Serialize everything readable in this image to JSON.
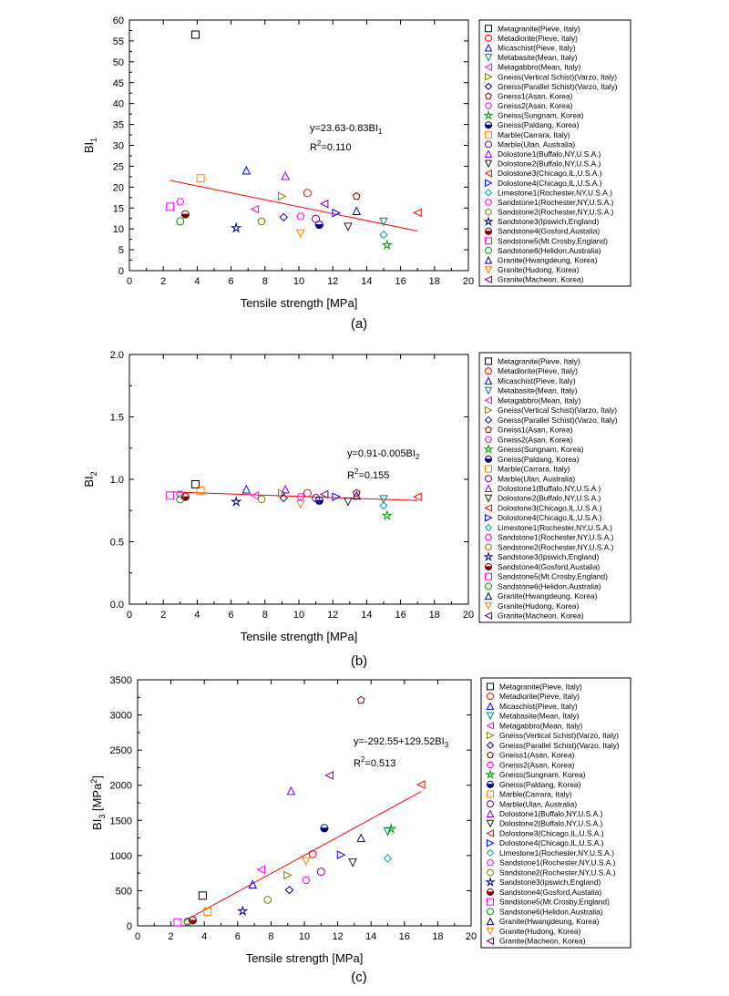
{
  "legend": {
    "entries": [
      {
        "label": "Metagranite(Pieve, Italy)",
        "marker": "square",
        "color": "#000000"
      },
      {
        "label": "Metadiorite(Pieve, Italy)",
        "marker": "circle",
        "color": "#ff0000"
      },
      {
        "label": "Micaschist(Pieve, Italy)",
        "marker": "tri-up",
        "color": "#0000ff"
      },
      {
        "label": "Metabasite(Mean, Italy)",
        "marker": "tri-down",
        "color": "#008080"
      },
      {
        "label": "Metagabbro(Mean, Italy)",
        "marker": "tri-left",
        "color": "#ff00ff"
      },
      {
        "label": "Gneiss(Vertical Schist)(Varzo, Italy)",
        "marker": "tri-right",
        "color": "#808000"
      },
      {
        "label": "Gneiss(Parallel Schist)(Varzo, Italy)",
        "marker": "diamond",
        "color": "#000080"
      },
      {
        "label": "Gneiss1(Asan, Korea)",
        "marker": "pentagon",
        "color": "#800000"
      },
      {
        "label": "Gneiss2(Asan, Korea)",
        "marker": "hexagon",
        "color": "#ff00ff"
      },
      {
        "label": "Gneiss(Sungnam, Korea)",
        "marker": "star",
        "color": "#00a000"
      },
      {
        "label": "Gneiss(Paldang, Korea)",
        "marker": "circle-half",
        "color": "#000080"
      },
      {
        "label": "Marble(Carrara, Italy)",
        "marker": "square",
        "color": "#ff8000"
      },
      {
        "label": " Marble(Ulan, Australia)",
        "marker": "circle",
        "color": "#800080"
      },
      {
        "label": "Dolostone1(Buffalo,NY,U.S.A.)",
        "marker": "tri-up",
        "color": "#8000ff"
      },
      {
        "label": "Dolostone2(Buffalo,NY,U.S.A.)",
        "marker": "tri-down",
        "color": "#202020"
      },
      {
        "label": "Dolostone3(Chicago,IL,U.S.A.)",
        "marker": "tri-left",
        "color": "#ff0000"
      },
      {
        "label": "Dolostone4(Chicago,IL,U.S.A.)",
        "marker": "tri-right",
        "color": "#0000ff"
      },
      {
        "label": "Limestone1(Rochester,NY,U.S.A.)",
        "marker": "diamond",
        "color": "#00a0a0"
      },
      {
        "label": "Sandstone1(Rochester,NY,U.S.A.)",
        "marker": "hexagon",
        "color": "#ff00ff"
      },
      {
        "label": "Sandstone2(Rochester,NY,U.S.A.)",
        "marker": "octagon",
        "color": "#808000"
      },
      {
        "label": "Sandstone3(Ipswich,England)",
        "marker": "star",
        "color": "#000080"
      },
      {
        "label": "Sandstone4(Gosford,Austalia)",
        "marker": "circle-half",
        "color": "#800000"
      },
      {
        "label": "Sandstone5(Mt.Crosby,England)",
        "marker": "square",
        "color": "#ff00ff"
      },
      {
        "label": "Sandstone6(Helidon,Australia)",
        "marker": "circle",
        "color": "#00a000"
      },
      {
        "label": "Granite(Hwangdeung, Korea)",
        "marker": "tri-up",
        "color": "#000080"
      },
      {
        "label": "Granite(Hudong, Korea)",
        "marker": "tri-down",
        "color": "#ff8000"
      },
      {
        "label": "Granite(Macheon, Korea)",
        "marker": "tri-left",
        "color": "#800080"
      }
    ]
  },
  "chart_data": [
    {
      "type": "scatter",
      "caption": "(a)",
      "xlabel": "Tensile strength [MPa]",
      "ylabel_main": "BI",
      "ylabel_sub": "1",
      "ylabel_tail": "",
      "ylabel_sup": "",
      "xlim": [
        0,
        20
      ],
      "ylim": [
        0,
        60
      ],
      "xticks": [
        0,
        2,
        4,
        6,
        8,
        10,
        12,
        14,
        16,
        18,
        20
      ],
      "yticks": [
        0,
        5,
        10,
        15,
        20,
        25,
        30,
        35,
        40,
        45,
        50,
        55,
        60
      ],
      "ytick_decimals": 0,
      "points": [
        [
          3.9,
          56.5
        ],
        [
          10.5,
          18.6
        ],
        [
          6.9,
          24.0
        ],
        [
          15.0,
          11.7
        ],
        [
          7.4,
          14.7
        ],
        [
          9.0,
          17.8
        ],
        [
          9.1,
          12.8
        ],
        [
          13.4,
          17.8
        ],
        [
          3.0,
          16.5
        ],
        [
          15.2,
          6.1
        ],
        [
          11.2,
          11.0
        ],
        [
          4.2,
          22.1
        ],
        [
          11.0,
          12.4
        ],
        [
          9.2,
          22.7
        ],
        [
          12.9,
          10.5
        ],
        [
          17.0,
          13.9
        ],
        [
          12.2,
          13.8
        ],
        [
          15.0,
          8.6
        ],
        [
          10.1,
          13.0
        ],
        [
          7.8,
          11.8
        ],
        [
          6.3,
          10.2
        ],
        [
          3.3,
          13.5
        ],
        [
          2.4,
          15.3
        ],
        [
          3.0,
          11.8
        ],
        [
          13.4,
          14.3
        ],
        [
          10.1,
          8.9
        ],
        [
          11.5,
          16.0
        ]
      ],
      "fit": {
        "x": [
          2.4,
          17.0
        ],
        "y": [
          21.6,
          9.5
        ]
      },
      "equation_main": "y=23.63-0.83BI",
      "equation_sub": "1",
      "equation_tail": "",
      "r2_label": "R",
      "r2_value": "=0.110"
    },
    {
      "type": "scatter",
      "caption": "(b)",
      "xlabel": "Tensile strength [MPa]",
      "ylabel_main": "BI",
      "ylabel_sub": "2",
      "ylabel_tail": "",
      "ylabel_sup": "",
      "xlim": [
        0,
        20
      ],
      "ylim": [
        0,
        2.0
      ],
      "xticks": [
        0,
        2,
        4,
        6,
        8,
        10,
        12,
        14,
        16,
        18,
        20
      ],
      "yticks": [
        0.0,
        0.5,
        1.0,
        1.5,
        2.0
      ],
      "ytick_decimals": 1,
      "points": [
        [
          3.9,
          0.96
        ],
        [
          10.5,
          0.89
        ],
        [
          6.9,
          0.92
        ],
        [
          15.0,
          0.84
        ],
        [
          7.4,
          0.87
        ],
        [
          9.0,
          0.89
        ],
        [
          9.1,
          0.85
        ],
        [
          13.4,
          0.89
        ],
        [
          3.0,
          0.88
        ],
        [
          15.2,
          0.71
        ],
        [
          11.2,
          0.83
        ],
        [
          4.2,
          0.91
        ],
        [
          11.0,
          0.85
        ],
        [
          9.2,
          0.92
        ],
        [
          12.9,
          0.82
        ],
        [
          17.0,
          0.86
        ],
        [
          12.2,
          0.86
        ],
        [
          15.0,
          0.79
        ],
        [
          10.1,
          0.86
        ],
        [
          7.8,
          0.84
        ],
        [
          6.3,
          0.82
        ],
        [
          3.3,
          0.86
        ],
        [
          2.4,
          0.87
        ],
        [
          3.0,
          0.84
        ],
        [
          13.4,
          0.87
        ],
        [
          10.1,
          0.8
        ],
        [
          11.5,
          0.88
        ]
      ],
      "fit": {
        "x": [
          2.4,
          17.0
        ],
        "y": [
          0.9,
          0.83
        ]
      },
      "equation_main": "y=0.91-0.005BI",
      "equation_sub": "2",
      "equation_tail": "",
      "r2_label": "R",
      "r2_value": "=0.155"
    },
    {
      "type": "scatter",
      "caption": "(c)",
      "xlabel": "Tensile strength [MPa]",
      "ylabel_main": "BI",
      "ylabel_sub": "3",
      "ylabel_tail": " [MPa",
      "ylabel_sup": "2",
      "ylabel_close": "]",
      "xlim": [
        0,
        20
      ],
      "ylim": [
        0,
        3500
      ],
      "xticks": [
        0,
        2,
        4,
        6,
        8,
        10,
        12,
        14,
        16,
        18,
        20
      ],
      "yticks": [
        0,
        500,
        1000,
        1500,
        2000,
        2500,
        3000,
        3500
      ],
      "ytick_decimals": 0,
      "points": [
        [
          3.9,
          430
        ],
        [
          10.5,
          1020
        ],
        [
          6.9,
          590
        ],
        [
          15.0,
          1340
        ],
        [
          7.4,
          800
        ],
        [
          9.0,
          720
        ],
        [
          9.1,
          510
        ],
        [
          13.4,
          3210
        ],
        [
          3.0,
          60
        ],
        [
          15.2,
          1380
        ],
        [
          11.2,
          1390
        ],
        [
          4.2,
          200
        ],
        [
          11.0,
          770
        ],
        [
          9.2,
          1920
        ],
        [
          12.9,
          900
        ],
        [
          17.0,
          2010
        ],
        [
          12.2,
          1010
        ],
        [
          15.0,
          960
        ],
        [
          10.1,
          650
        ],
        [
          7.8,
          370
        ],
        [
          6.3,
          210
        ],
        [
          3.3,
          80
        ],
        [
          2.4,
          50
        ],
        [
          3.0,
          60
        ],
        [
          13.4,
          1250
        ],
        [
          10.1,
          920
        ],
        [
          11.5,
          2140
        ]
      ],
      "fit": {
        "x": [
          2.8,
          17.0
        ],
        "y": [
          70,
          1910
        ]
      },
      "equation_main": "y=-292.55+129.52BI",
      "equation_sub": "3",
      "equation_tail": "",
      "r2_label": "R",
      "r2_value": "=0.513"
    }
  ]
}
